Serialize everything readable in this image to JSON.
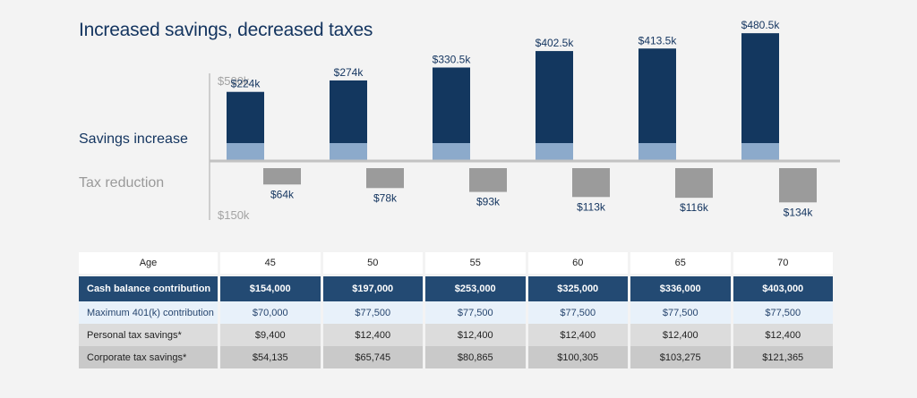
{
  "title": "Increased savings, decreased taxes",
  "chart_data": {
    "type": "bar",
    "categories": [
      "45",
      "50",
      "55",
      "60",
      "65",
      "70"
    ],
    "series": [
      {
        "name": "Savings increase",
        "values": [
          224,
          274,
          330.5,
          402.5,
          413.5,
          480.5
        ],
        "labels": [
          "$224k",
          "$274k",
          "$330.5k",
          "$402.5k",
          "$413.5k",
          "$480.5k"
        ]
      },
      {
        "name": "Tax reduction",
        "values": [
          64,
          78,
          93,
          113,
          116,
          134
        ],
        "labels": [
          "$64k",
          "$78k",
          "$93k",
          "$113k",
          "$116k",
          "$134k"
        ]
      }
    ],
    "upper_tick_label": "$500k",
    "lower_tick_label": "$150k",
    "savings_label": "Savings increase",
    "tax_label": "Tax reduction",
    "colors": {
      "savings_dark": "#13375f",
      "savings_light": "#8caacb",
      "tax": "#9b9b9b",
      "baseline": "#c2c2c2",
      "tick_label": "#a3a3a3",
      "savings_text": "#13345f",
      "tax_text": "#9a9a9a"
    }
  },
  "table": {
    "header": {
      "label": "Age",
      "values": [
        "45",
        "50",
        "55",
        "60",
        "65",
        "70"
      ]
    },
    "rows": [
      {
        "key": "cash",
        "label": "Cash balance contribution",
        "values": [
          "$154,000",
          "$197,000",
          "$253,000",
          "$325,000",
          "$336,000",
          "$403,000"
        ]
      },
      {
        "key": "401k",
        "label": "Maximum 401(k) contribution",
        "values": [
          "$70,000",
          "$77,500",
          "$77,500",
          "$77,500",
          "$77,500",
          "$77,500"
        ]
      },
      {
        "key": "personal",
        "label": "Personal tax savings*",
        "values": [
          "$9,400",
          "$12,400",
          "$12,400",
          "$12,400",
          "$12,400",
          "$12,400"
        ]
      },
      {
        "key": "corp",
        "label": "Corporate tax savings*",
        "values": [
          "$54,135",
          "$65,745",
          "$80,865",
          "$100,305",
          "$103,275",
          "$121,365"
        ]
      }
    ]
  }
}
